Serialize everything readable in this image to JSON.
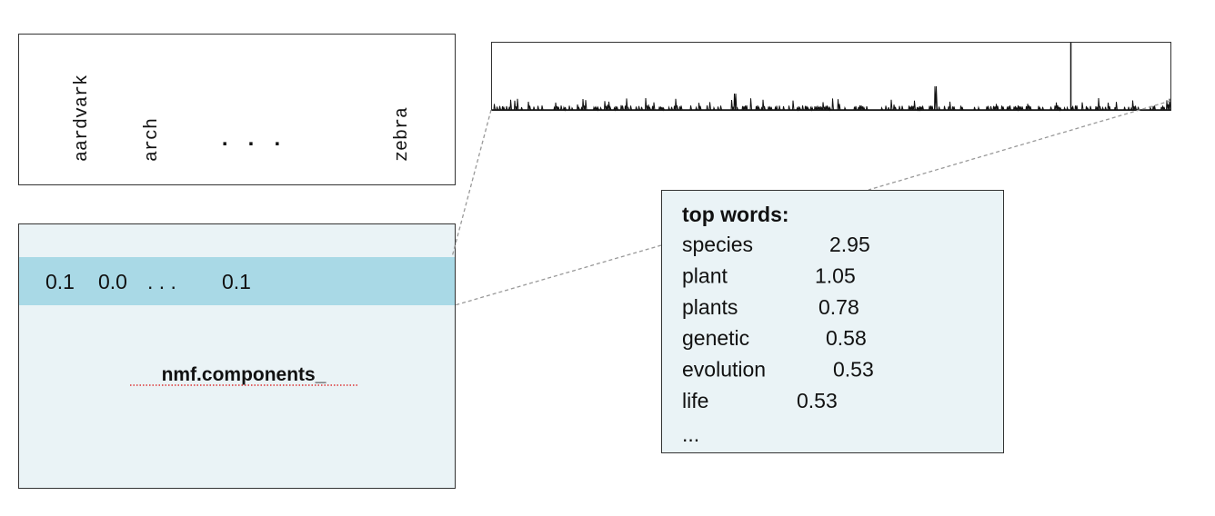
{
  "vocabulary": {
    "words": [
      "aardvark",
      "arch",
      ". . .",
      "zebra"
    ]
  },
  "components": {
    "row": [
      "0.1",
      "0.0",
      ". . .",
      "0.1"
    ],
    "label": "nmf.components_"
  },
  "top_words": {
    "title": "top words:",
    "rows": [
      {
        "word": "species",
        "weight": 2.95
      },
      {
        "word": "plant",
        "weight": 1.05
      },
      {
        "word": "plants",
        "weight": 0.78
      },
      {
        "word": "genetic",
        "weight": 0.58
      },
      {
        "word": "evolution",
        "weight": 0.53
      },
      {
        "word": "life",
        "weight": 0.53
      }
    ],
    "more": "..."
  }
}
